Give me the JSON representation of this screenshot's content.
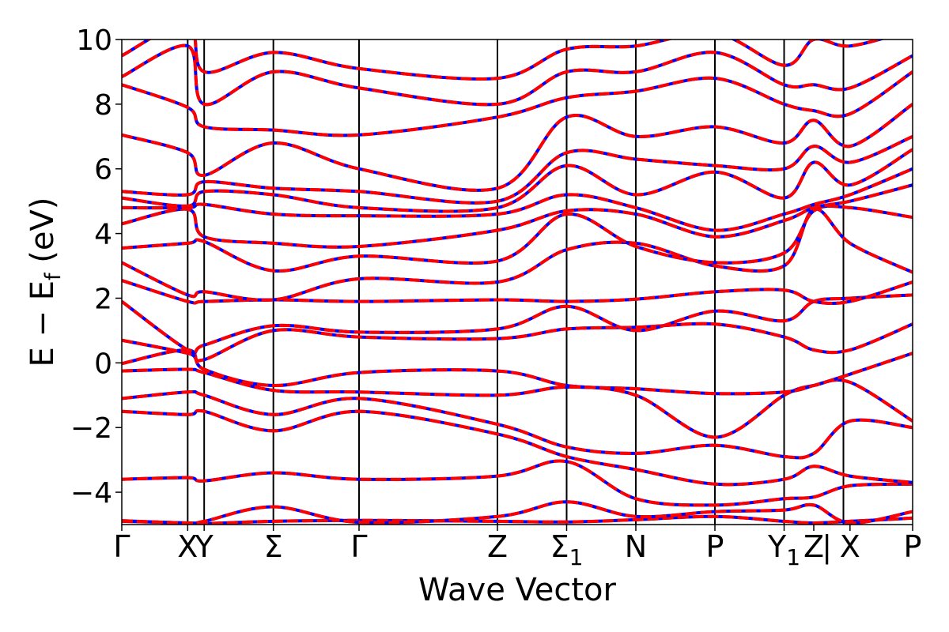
{
  "chart_data": {
    "type": "line",
    "title": "",
    "xlabel": "Wave Vector",
    "ylabel": "E − E_f (eV)",
    "ylabel_parts": {
      "lead": "E − E",
      "sub": "f",
      "tail": " (eV)"
    },
    "ylim": [
      -5,
      10
    ],
    "yticks": [
      {
        "value": 10,
        "label": "10"
      },
      {
        "value": 8,
        "label": "8"
      },
      {
        "value": 6,
        "label": "6"
      },
      {
        "value": 4,
        "label": "4"
      },
      {
        "value": 2,
        "label": "2"
      },
      {
        "value": 0,
        "label": "0"
      },
      {
        "value": -2,
        "label": "−2"
      },
      {
        "value": -4,
        "label": "−4"
      }
    ],
    "xlim": [
      0,
      12
    ],
    "high_symmetry_points": [
      {
        "label": "Γ",
        "x": 0
      },
      {
        "label": "X",
        "x": 1
      },
      {
        "label": "Y",
        "x": 1.25
      },
      {
        "label": "Σ",
        "x": 2.3
      },
      {
        "label": "Γ",
        "x": 3.6
      },
      {
        "label": "Z",
        "x": 5.7
      },
      {
        "label": "Σ",
        "sub": "1",
        "x": 6.75
      },
      {
        "label": "N",
        "x": 7.8
      },
      {
        "label": "P",
        "x": 9.0
      },
      {
        "label": "Y",
        "sub": "1",
        "x": 10.05
      },
      {
        "label": "Z",
        "x": 10.5
      },
      {
        "label": "|",
        "x": 10.7
      },
      {
        "label": "X",
        "x": 11.05
      },
      {
        "label": "P",
        "x": 12
      }
    ],
    "vertical_lines_at": [
      1,
      1.25,
      2.3,
      3.6,
      5.7,
      6.75,
      7.8,
      9.0,
      10.05,
      10.95
    ],
    "series_styles": [
      {
        "color": "#0000ff",
        "style": "solid"
      },
      {
        "color": "#ff0000",
        "style": "dashed"
      }
    ],
    "bands": [
      [
        -4.9,
        -4.95,
        -4.97,
        -4.9,
        -4.87,
        -4.9,
        -4.92,
        -4.85,
        -4.75,
        -4.9,
        -4.95,
        -4.9,
        -4.8
      ],
      [
        -4.88,
        -4.95,
        -4.9,
        -4.45,
        -4.93,
        -4.75,
        -4.3,
        -4.75,
        -4.6,
        -4.55,
        -4.4,
        -4.95,
        -4.6
      ],
      [
        -3.6,
        -3.55,
        -3.65,
        -3.4,
        -3.6,
        -3.5,
        -3.05,
        -4.2,
        -4.4,
        -4.2,
        -4.15,
        -3.8,
        -3.75
      ],
      [
        -1.5,
        -1.6,
        -1.5,
        -2.1,
        -1.5,
        -2.2,
        -2.9,
        -3.3,
        -3.75,
        -3.6,
        -3.2,
        -3.5,
        -3.7
      ],
      [
        -1.1,
        -0.9,
        -1.0,
        -1.6,
        -1.1,
        -1.9,
        -2.6,
        -2.8,
        -2.55,
        -2.9,
        -2.8,
        -1.8,
        -2.0
      ],
      [
        -0.25,
        -0.2,
        -0.3,
        -0.85,
        -0.9,
        -1.0,
        -0.75,
        -1.0,
        -2.3,
        -1.0,
        -0.7,
        -0.6,
        -1.8
      ],
      [
        -0.02,
        0.4,
        -0.2,
        -0.7,
        -0.3,
        -0.25,
        -0.7,
        -0.8,
        -0.95,
        -0.9,
        -0.7,
        -0.35,
        0.3
      ],
      [
        0.7,
        0.3,
        0.1,
        1.0,
        0.8,
        0.75,
        1.05,
        1.1,
        1.2,
        0.8,
        0.4,
        0.4,
        1.2
      ],
      [
        1.9,
        0.4,
        0.55,
        1.15,
        0.95,
        1.05,
        1.75,
        1.0,
        1.6,
        1.3,
        1.9,
        2.0,
        2.1
      ],
      [
        2.55,
        1.9,
        1.9,
        1.95,
        1.9,
        1.95,
        1.9,
        1.97,
        2.2,
        2.25,
        1.9,
        1.9,
        2.5
      ],
      [
        3.1,
        2.1,
        2.2,
        1.95,
        2.6,
        2.5,
        3.5,
        3.7,
        3.0,
        3.0,
        4.75,
        3.7,
        2.8
      ],
      [
        3.55,
        3.7,
        3.75,
        2.85,
        3.3,
        3.15,
        4.6,
        3.6,
        3.1,
        3.4,
        4.7,
        4.8,
        4.5
      ],
      [
        4.3,
        4.75,
        3.9,
        3.7,
        3.6,
        4.1,
        4.7,
        4.6,
        3.9,
        4.4,
        4.8,
        5.0,
        5.5
      ],
      [
        4.8,
        4.8,
        4.9,
        4.6,
        4.55,
        4.6,
        5.2,
        4.8,
        4.1,
        4.6,
        4.9,
        5.2,
        6.0
      ],
      [
        5.1,
        4.85,
        5.3,
        5.2,
        4.8,
        4.8,
        6.1,
        5.2,
        5.9,
        5.1,
        6.2,
        5.5,
        6.6
      ],
      [
        5.3,
        5.2,
        5.6,
        5.4,
        5.3,
        5.0,
        6.5,
        6.3,
        6.1,
        6.0,
        6.7,
        6.2,
        7.0
      ],
      [
        7.05,
        6.5,
        5.8,
        6.8,
        6.0,
        5.4,
        7.6,
        7.0,
        7.3,
        6.8,
        7.5,
        6.7,
        8.0
      ],
      [
        8.6,
        7.9,
        7.3,
        7.2,
        7.05,
        7.6,
        8.2,
        8.4,
        8.8,
        8.0,
        7.8,
        7.7,
        9.0
      ],
      [
        8.85,
        9.8,
        8.0,
        9.0,
        8.5,
        8.0,
        9.0,
        9.0,
        9.6,
        8.6,
        8.6,
        8.5,
        9.5
      ],
      [
        9.5,
        10.5,
        9.0,
        9.6,
        9.1,
        8.8,
        9.7,
        9.8,
        10.2,
        9.2,
        10.0,
        9.8,
        10.3
      ]
    ]
  }
}
